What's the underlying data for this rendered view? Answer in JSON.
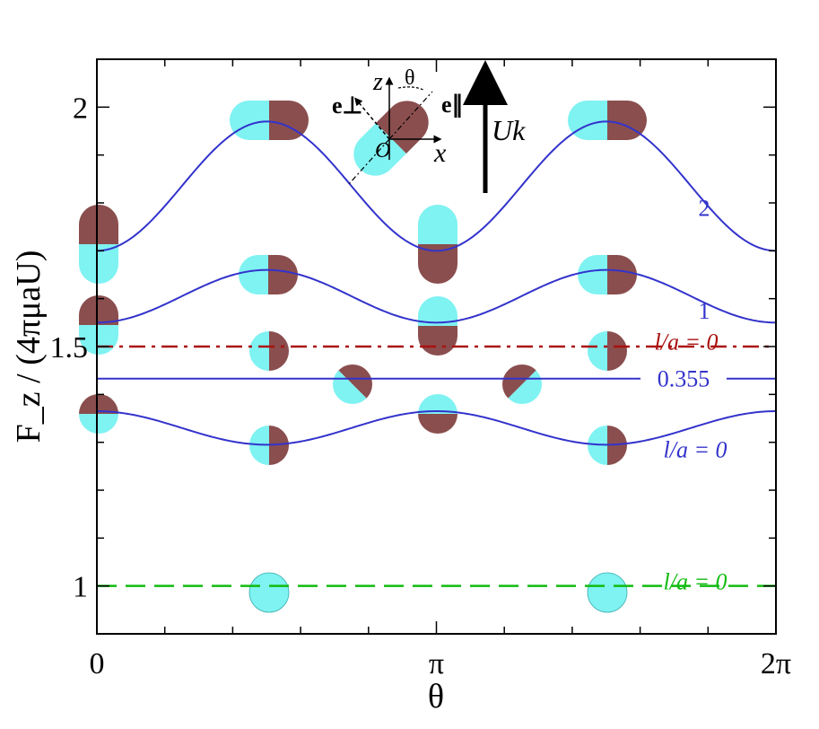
{
  "chart_data": {
    "type": "line",
    "xlabel": "θ",
    "ylabel": "F_z / (4πμaU)",
    "xlim": [
      0,
      6.283185
    ],
    "ylim": [
      0.9,
      2.1
    ],
    "xticks": [
      {
        "value": 0,
        "label": "0"
      },
      {
        "value": 3.141593,
        "label": "π"
      },
      {
        "value": 6.283185,
        "label": "2π"
      }
    ],
    "yticks": [
      {
        "value": 1.0,
        "label": "1"
      },
      {
        "value": 1.5,
        "label": "1.5"
      },
      {
        "value": 2.0,
        "label": "2"
      }
    ],
    "series": [
      {
        "label": "2",
        "style": "solid",
        "color": "#3333cc",
        "mean": 1.835,
        "amplitude": 0.135,
        "min": 1.7,
        "max": 1.97
      },
      {
        "label": "1",
        "style": "solid",
        "color": "#3333cc",
        "mean": 1.605,
        "amplitude": 0.055,
        "min": 1.55,
        "max": 1.66
      },
      {
        "label": "0.355",
        "style": "solid",
        "color": "#3333cc",
        "mean": 1.433,
        "amplitude": 0.0,
        "min": 1.433,
        "max": 1.433
      },
      {
        "label": "l/a = 0",
        "style": "solid",
        "color": "#3333cc",
        "mean": 1.33,
        "amplitude": -0.035,
        "min": 1.295,
        "max": 1.365
      },
      {
        "label": "l/a = 0",
        "style": "dashdot",
        "color": "#aa1111",
        "mean": 1.5,
        "amplitude": 0.0,
        "min": 1.5,
        "max": 1.5
      },
      {
        "label": "l/a = 0",
        "style": "dashed",
        "color": "#11bb11",
        "mean": 1.0,
        "amplitude": 0.0,
        "min": 1.0,
        "max": 1.0
      }
    ],
    "inset": {
      "z_label": "z",
      "theta_label": "θ",
      "x_label": "x",
      "origin_label": "O",
      "e_perp_label": "e⊥",
      "e_par_label": "e∥",
      "velocity_label": "Uk"
    },
    "colors": {
      "particle_light": "#7ff2f2",
      "particle_dark": "#8a4e4e"
    }
  }
}
